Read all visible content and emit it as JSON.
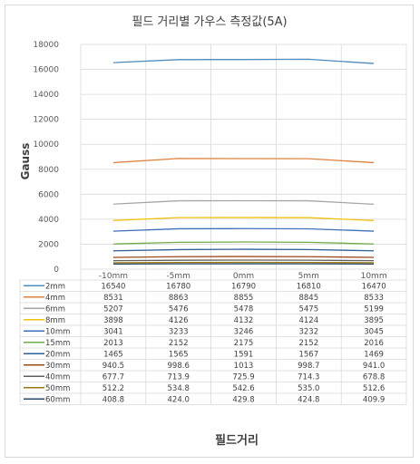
{
  "chart_data": {
    "type": "line",
    "title": "필드 거리별 가우스 측정값(5A)",
    "xlabel": "필드거리",
    "ylabel": "Gauss",
    "categories": [
      "-10mm",
      "-5mm",
      "0mm",
      "5mm",
      "10mm"
    ],
    "ylim": [
      0,
      18000
    ],
    "yticks": [
      0,
      2000,
      4000,
      6000,
      8000,
      10000,
      12000,
      14000,
      16000,
      18000
    ],
    "grid": true,
    "legend": "data-table",
    "series": [
      {
        "name": "2mm",
        "color": "#4e8bbd",
        "values": [
          16540,
          16780,
          16790,
          16810,
          16470
        ],
        "labels": [
          "16540",
          "16780",
          "16790",
          "16810",
          "16470"
        ]
      },
      {
        "name": "4mm",
        "color": "#e0823c",
        "values": [
          8531,
          8863,
          8855,
          8845,
          8533
        ],
        "labels": [
          "8531",
          "8863",
          "8855",
          "8845",
          "8533"
        ]
      },
      {
        "name": "6mm",
        "color": "#a5a5a5",
        "values": [
          5207,
          5476,
          5478,
          5475,
          5199
        ],
        "labels": [
          "5207",
          "5476",
          "5478",
          "5475",
          "5199"
        ]
      },
      {
        "name": "8mm",
        "color": "#f2c10f",
        "values": [
          3898,
          4126,
          4132,
          4124,
          3895
        ],
        "labels": [
          "3898",
          "4126",
          "4132",
          "4124",
          "3895"
        ]
      },
      {
        "name": "10mm",
        "color": "#3f6fba",
        "values": [
          3041,
          3233,
          3246,
          3232,
          3045
        ],
        "labels": [
          "3041",
          "3233",
          "3246",
          "3232",
          "3045"
        ]
      },
      {
        "name": "15mm",
        "color": "#70ad47",
        "values": [
          2013,
          2152,
          2175,
          2152,
          2016
        ],
        "labels": [
          "2013",
          "2152",
          "2175",
          "2152",
          "2016"
        ]
      },
      {
        "name": "20mm",
        "color": "#2f5f96",
        "values": [
          1465,
          1565,
          1591,
          1567,
          1469
        ],
        "labels": [
          "1465",
          "1565",
          "1591",
          "1567",
          "1469"
        ]
      },
      {
        "name": "30mm",
        "color": "#9b4a1e",
        "values": [
          940.5,
          998.6,
          1013,
          998.7,
          941.0
        ],
        "labels": [
          "940.5",
          "998.6",
          "1013",
          "998.7",
          "941.0"
        ]
      },
      {
        "name": "40mm",
        "color": "#5f5f5f",
        "values": [
          677.7,
          713.9,
          725.9,
          714.3,
          678.8
        ],
        "labels": [
          "677.7",
          "713.9",
          "725.9",
          "714.3",
          "678.8"
        ]
      },
      {
        "name": "50mm",
        "color": "#9a7a0a",
        "values": [
          512.2,
          534.8,
          542.6,
          535.0,
          512.6
        ],
        "labels": [
          "512.2",
          "534.8",
          "542.6",
          "535.0",
          "512.6"
        ]
      },
      {
        "name": "60mm",
        "color": "#27476f",
        "values": [
          408.8,
          424.0,
          429.8,
          424.8,
          409.9
        ],
        "labels": [
          "408.8",
          "424.0",
          "429.8",
          "424.8",
          "409.9"
        ]
      }
    ]
  }
}
